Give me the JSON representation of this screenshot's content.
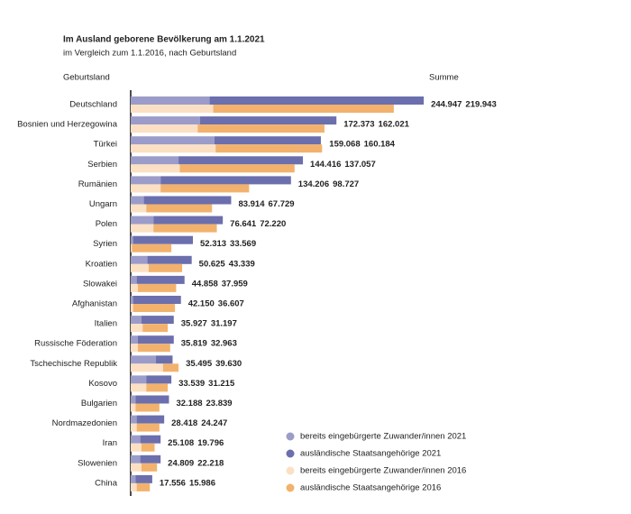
{
  "chart_data": {
    "type": "bar",
    "title": "Im Ausland geborene Bevölkerung am 1.1.2021",
    "subtitle": "im Vergleich zum 1.1.2016, nach Geburtsland",
    "category_label": "Geburtsland",
    "sum_label": "Summe",
    "categories": [
      "Deutschland",
      "Bosnien und Herzegowina",
      "Türkei",
      "Serbien",
      "Rumänien",
      "Ungarn",
      "Polen",
      "Syrien",
      "Kroatien",
      "Slowakei",
      "Afghanistan",
      "Italien",
      "Russische Föderation",
      "Tschechische Republik",
      "Kosovo",
      "Bulgarien",
      "Nordmazedonien",
      "Iran",
      "Slowenien",
      "China"
    ],
    "stacks": [
      {
        "series": [
          {
            "name": "bereits eingebürgerte Zuwander/innen 2021",
            "color": "#9b9cc9",
            "values": [
              66000,
              58000,
              70000,
              40000,
              25000,
              11000,
              19000,
              2000,
              14000,
              5000,
              2000,
              9000,
              6000,
              21000,
              13000,
              4000,
              5000,
              8000,
              8000,
              4000
            ]
          },
          {
            "name": "ausländische Staatsangehörige 2021",
            "color": "#6b6fad",
            "values": [
              179000,
              114000,
              89000,
              104000,
              109000,
              73000,
              58000,
              50000,
              37000,
              40000,
              40000,
              27000,
              30000,
              14000,
              21000,
              28000,
              23000,
              17000,
              17000,
              14000
            ]
          }
        ],
        "totals": [
          {
            "value": 244947,
            "label": "244.947"
          },
          {
            "value": 172373,
            "label": "172.373"
          },
          {
            "value": 159068,
            "label": "159.068"
          },
          {
            "value": 144416,
            "label": "144.416"
          },
          {
            "value": 134206,
            "label": "134.206"
          },
          {
            "value": 83914,
            "label": "83.914"
          },
          {
            "value": 76641,
            "label": "76.641"
          },
          {
            "value": 52313,
            "label": "52.313"
          },
          {
            "value": 50625,
            "label": "50.625"
          },
          {
            "value": 44858,
            "label": "44.858"
          },
          {
            "value": 42150,
            "label": "42.150"
          },
          {
            "value": 35927,
            "label": "35.927"
          },
          {
            "value": 35819,
            "label": "35.819"
          },
          {
            "value": 35495,
            "label": "35.495"
          },
          {
            "value": 33539,
            "label": "33.539"
          },
          {
            "value": 32188,
            "label": "32.188"
          },
          {
            "value": 28418,
            "label": "28.418"
          },
          {
            "value": 25108,
            "label": "25.108"
          },
          {
            "value": 24809,
            "label": "24.809"
          },
          {
            "value": 17556,
            "label": "17.556"
          }
        ]
      },
      {
        "series": [
          {
            "name": "bereits eingebürgerte Zuwander/innen 2016",
            "color": "#fbe0c4",
            "values": [
              69000,
              56000,
              71000,
              41000,
              25000,
              13000,
              19000,
              1000,
              15000,
              6000,
              2000,
              10000,
              6000,
              27000,
              13000,
              4000,
              5000,
              9000,
              9000,
              5000
            ]
          },
          {
            "name": "ausländische Staatsangehörige 2016",
            "color": "#f2b26d",
            "values": [
              151000,
              106000,
              89000,
              96000,
              74000,
              55000,
              53000,
              33000,
              28000,
              32000,
              35000,
              21000,
              27000,
              13000,
              18000,
              20000,
              19000,
              11000,
              13000,
              11000
            ]
          }
        ],
        "totals": [
          {
            "value": 219943,
            "label": "219.943"
          },
          {
            "value": 162021,
            "label": "162.021"
          },
          {
            "value": 160184,
            "label": "160.184"
          },
          {
            "value": 137057,
            "label": "137.057"
          },
          {
            "value": 98727,
            "label": "98.727"
          },
          {
            "value": 67729,
            "label": "67.729"
          },
          {
            "value": 72220,
            "label": "72.220"
          },
          {
            "value": 33569,
            "label": "33.569"
          },
          {
            "value": 43339,
            "label": "43.339"
          },
          {
            "value": 37959,
            "label": "37.959"
          },
          {
            "value": 36607,
            "label": "36.607"
          },
          {
            "value": 31197,
            "label": "31.197"
          },
          {
            "value": 32963,
            "label": "32.963"
          },
          {
            "value": 39630,
            "label": "39.630"
          },
          {
            "value": 31215,
            "label": "31.215"
          },
          {
            "value": 23839,
            "label": "23.839"
          },
          {
            "value": 24247,
            "label": "24.247"
          },
          {
            "value": 19796,
            "label": "19.796"
          },
          {
            "value": 22218,
            "label": "22.218"
          },
          {
            "value": 15986,
            "label": "15.986"
          }
        ]
      }
    ]
  }
}
